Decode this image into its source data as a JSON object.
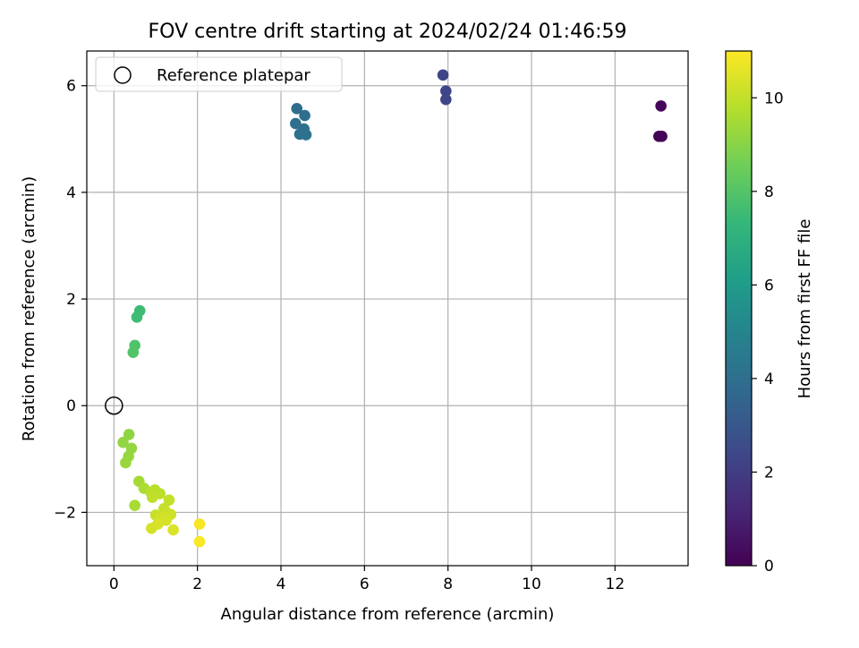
{
  "chart_data": {
    "type": "scatter",
    "title": "FOV centre drift starting at 2024/02/24 01:46:59",
    "xlabel": "Angular distance from reference (arcmin)",
    "ylabel": "Rotation from reference (arcmin)",
    "xlim": [
      -0.65,
      13.75
    ],
    "ylim": [
      -3.0,
      6.65
    ],
    "xticks": [
      0,
      2,
      4,
      6,
      8,
      10,
      12
    ],
    "yticks": [
      -2,
      0,
      2,
      4,
      6
    ],
    "xtick_labels": [
      "0",
      "2",
      "4",
      "6",
      "8",
      "10",
      "12"
    ],
    "ytick_labels": [
      "−2",
      "0",
      "2",
      "4",
      "6"
    ],
    "grid": true,
    "legend": {
      "placement": "top-left",
      "entries": [
        {
          "label": "Reference platepar",
          "marker": "open-circle"
        }
      ]
    },
    "reference_point": {
      "x": 0.0,
      "y": 0.0
    },
    "colorbar": {
      "label": "Hours from first FF file",
      "min": 0,
      "max": 11,
      "ticks": [
        0,
        2,
        4,
        6,
        8,
        10
      ],
      "tick_labels": [
        "0",
        "2",
        "4",
        "6",
        "8",
        "10"
      ],
      "colormap": "viridis",
      "colors": [
        "#440154",
        "#482878",
        "#3e4989",
        "#31688e",
        "#26828e",
        "#1f9e89",
        "#35b779",
        "#6ece58",
        "#b5de2b",
        "#fde725"
      ]
    },
    "points": [
      {
        "x": 13.05,
        "y": 5.05,
        "hours": 0.05
      },
      {
        "x": 13.12,
        "y": 5.05,
        "hours": 0.1
      },
      {
        "x": 13.1,
        "y": 5.62,
        "hours": 0.2
      },
      {
        "x": 7.88,
        "y": 6.2,
        "hours": 2.3
      },
      {
        "x": 7.95,
        "y": 5.9,
        "hours": 2.35
      },
      {
        "x": 7.95,
        "y": 5.74,
        "hours": 2.4
      },
      {
        "x": 4.38,
        "y": 5.57,
        "hours": 3.9
      },
      {
        "x": 4.57,
        "y": 5.44,
        "hours": 3.95
      },
      {
        "x": 4.35,
        "y": 5.29,
        "hours": 4.0
      },
      {
        "x": 4.55,
        "y": 5.19,
        "hours": 4.05
      },
      {
        "x": 4.45,
        "y": 5.09,
        "hours": 4.1
      },
      {
        "x": 4.6,
        "y": 5.08,
        "hours": 4.15
      },
      {
        "x": 0.62,
        "y": 1.78,
        "hours": 7.5
      },
      {
        "x": 0.55,
        "y": 1.66,
        "hours": 7.55
      },
      {
        "x": 0.5,
        "y": 1.13,
        "hours": 7.9
      },
      {
        "x": 0.46,
        "y": 1.0,
        "hours": 7.95
      },
      {
        "x": 0.36,
        "y": -0.54,
        "hours": 9.1
      },
      {
        "x": 0.22,
        "y": -0.69,
        "hours": 9.15
      },
      {
        "x": 0.42,
        "y": -0.8,
        "hours": 9.2
      },
      {
        "x": 0.35,
        "y": -0.95,
        "hours": 9.25
      },
      {
        "x": 0.28,
        "y": -1.07,
        "hours": 9.3
      },
      {
        "x": 0.6,
        "y": -1.42,
        "hours": 9.5
      },
      {
        "x": 0.72,
        "y": -1.55,
        "hours": 9.6
      },
      {
        "x": 0.5,
        "y": -1.87,
        "hours": 9.55
      },
      {
        "x": 0.88,
        "y": -1.62,
        "hours": 9.8
      },
      {
        "x": 0.98,
        "y": -1.58,
        "hours": 9.85
      },
      {
        "x": 1.1,
        "y": -1.65,
        "hours": 9.9
      },
      {
        "x": 0.92,
        "y": -1.72,
        "hours": 9.95
      },
      {
        "x": 1.32,
        "y": -1.77,
        "hours": 10.0
      },
      {
        "x": 1.2,
        "y": -1.93,
        "hours": 10.05
      },
      {
        "x": 1.0,
        "y": -2.05,
        "hours": 10.1
      },
      {
        "x": 1.28,
        "y": -2.02,
        "hours": 10.15
      },
      {
        "x": 1.36,
        "y": -2.04,
        "hours": 10.2
      },
      {
        "x": 1.12,
        "y": -2.1,
        "hours": 10.25
      },
      {
        "x": 1.25,
        "y": -2.15,
        "hours": 10.3
      },
      {
        "x": 1.05,
        "y": -2.22,
        "hours": 10.35
      },
      {
        "x": 0.9,
        "y": -2.3,
        "hours": 10.3
      },
      {
        "x": 1.42,
        "y": -2.33,
        "hours": 10.4
      },
      {
        "x": 2.05,
        "y": -2.22,
        "hours": 10.9
      },
      {
        "x": 2.05,
        "y": -2.55,
        "hours": 10.95
      }
    ]
  }
}
